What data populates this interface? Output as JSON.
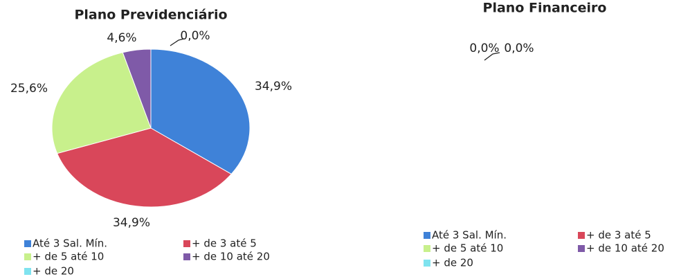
{
  "chart_data": [
    {
      "type": "pie",
      "title": "Plano Previdenciário",
      "categories": [
        "Até 3 Sal. Mín.",
        "+ de 3 até 5",
        "+ de 5 até 10",
        "+ de 10 até 20",
        "+ de 20"
      ],
      "values": [
        34.9,
        34.9,
        25.6,
        4.6,
        0.0
      ],
      "value_labels": [
        "34,9%",
        "34,9%",
        "25,6%",
        "4,6%",
        "0,0%"
      ],
      "colors": [
        "#3f82d8",
        "#d9475a",
        "#c8f08c",
        "#7f5aa8",
        "#7fe3ef"
      ]
    },
    {
      "type": "pie",
      "title": "Plano Financeiro",
      "categories": [
        "Até 3 Sal. Mín.",
        "+ de 3 até 5",
        "+ de 5 até 10",
        "+ de 10 até 20",
        "+ de 20"
      ],
      "values": [
        0.0,
        0.0,
        0.0,
        0.0,
        0.0
      ],
      "value_labels": [
        "0,0%",
        "0,0%",
        null,
        null,
        null
      ],
      "colors": [
        "#3f82d8",
        "#d9475a",
        "#c8f08c",
        "#7f5aa8",
        "#7fe3ef"
      ]
    }
  ]
}
